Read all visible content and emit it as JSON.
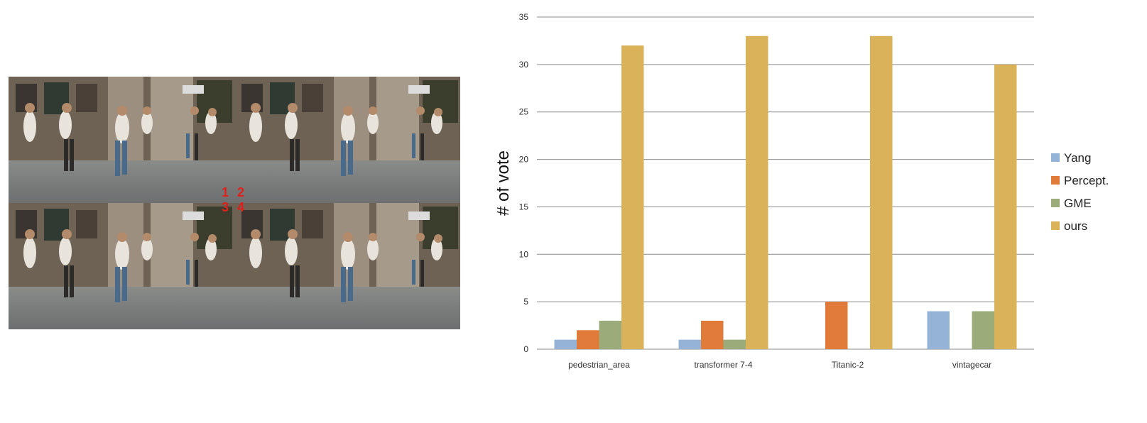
{
  "photo": {
    "markers": [
      "1",
      "2",
      "3",
      "4"
    ]
  },
  "chart_data": {
    "type": "bar",
    "categories": [
      "pedestrian_area",
      "transformer 7-4",
      "Titanic-2",
      "vintagecar"
    ],
    "series": [
      {
        "name": "Yang",
        "values": [
          1,
          1,
          0,
          4
        ],
        "color": "#95b3d7"
      },
      {
        "name": "Percept.",
        "values": [
          2,
          3,
          5,
          0
        ],
        "color": "#e07b39"
      },
      {
        "name": "GME",
        "values": [
          3,
          1,
          0,
          4
        ],
        "color": "#9bab7a"
      },
      {
        "name": "ours",
        "values": [
          32,
          33,
          33,
          30
        ],
        "color": "#d9b25a"
      }
    ],
    "ylabel": "# of vote",
    "ylim": [
      0,
      35
    ],
    "yticks": [
      0,
      5,
      10,
      15,
      20,
      25,
      30,
      35
    ],
    "grid": true,
    "legend": "right"
  }
}
